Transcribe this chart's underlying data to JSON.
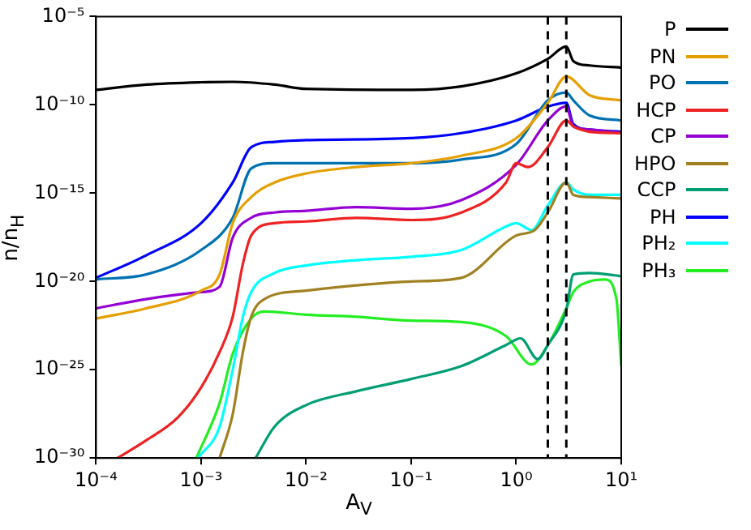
{
  "chart_data": {
    "type": "line",
    "xlabel": "A$_{V}$",
    "ylabel": "n/n$_{H}$",
    "log": "xy",
    "xlim": [
      0.0001,
      10
    ],
    "ylim": [
      1e-30,
      1e-05
    ],
    "xticks": [
      {
        "value": 0.0001,
        "label": "10⁻⁴"
      },
      {
        "value": 0.001,
        "label": "10⁻³"
      },
      {
        "value": 0.01,
        "label": "10⁻²"
      },
      {
        "value": 0.1,
        "label": "10⁻¹"
      },
      {
        "value": 1,
        "label": "10⁰"
      },
      {
        "value": 10,
        "label": "10¹"
      }
    ],
    "yticks": [
      {
        "value": 1e-30,
        "label": "10⁻³⁰"
      },
      {
        "value": 1e-25,
        "label": "10⁻²⁵"
      },
      {
        "value": 1e-20,
        "label": "10⁻²⁰"
      },
      {
        "value": 1e-15,
        "label": "10⁻¹⁵"
      },
      {
        "value": 1e-10,
        "label": "10⁻¹⁰"
      },
      {
        "value": 1e-05,
        "label": "10⁻⁵"
      }
    ],
    "grid": false,
    "legend": "right",
    "marker": "none",
    "line_style": "solid",
    "ref_lines": [
      {
        "axis": "x",
        "value": 2,
        "color": "#000000",
        "line_style": "dashed"
      },
      {
        "axis": "x",
        "value": 3,
        "color": "#000000",
        "line_style": "dashed"
      }
    ],
    "series": [
      {
        "name": "P",
        "color": "#000000",
        "x": [
          0.0001,
          0.0003,
          0.001,
          0.002,
          0.005,
          0.01,
          0.1,
          0.3,
          1,
          2,
          3,
          3.5,
          5,
          10
        ],
        "values": [
          7e-10,
          1.4e-09,
          1.9e-09,
          2e-09,
          1.4e-09,
          8e-10,
          7e-10,
          1.1e-09,
          6e-09,
          4e-08,
          2e-07,
          3e-08,
          1.7e-08,
          1.3e-08
        ]
      },
      {
        "name": "PN",
        "color": "#e69f00",
        "x": [
          0.0001,
          0.0003,
          0.001,
          0.0015,
          0.002,
          0.003,
          0.005,
          0.01,
          0.03,
          0.1,
          0.3,
          1,
          2,
          3,
          5,
          10
        ],
        "values": [
          8e-23,
          3e-22,
          3e-21,
          2.5e-20,
          2e-17,
          6e-16,
          4e-15,
          1.3e-14,
          3e-14,
          5e-14,
          1.3e-13,
          1.3e-12,
          1.3e-10,
          4e-09,
          3.5e-10,
          1.8e-10
        ]
      },
      {
        "name": "PO",
        "color": "#0072b2",
        "x": [
          0.0001,
          0.0003,
          0.001,
          0.002,
          0.003,
          0.005,
          0.01,
          0.1,
          0.3,
          1,
          2,
          3,
          3.5,
          5,
          10
        ],
        "values": [
          1.3e-20,
          2.5e-20,
          6e-19,
          4e-17,
          2.5e-14,
          5e-14,
          5e-14,
          5e-14,
          8e-14,
          6e-13,
          1.8e-10,
          5e-10,
          1.8e-10,
          2.5e-11,
          1.3e-11
        ]
      },
      {
        "name": "HCP",
        "color": "#ee2222",
        "x": [
          0.00016,
          0.0003,
          0.0006,
          0.001,
          0.0015,
          0.002,
          0.0025,
          0.003,
          0.005,
          0.01,
          0.03,
          0.1,
          0.3,
          0.8,
          1,
          1.3,
          2,
          3,
          3.5,
          5,
          10
        ],
        "values": [
          1e-30,
          1e-29,
          2e-28,
          1e-26,
          1e-24,
          1e-22,
          1e-19,
          4e-18,
          2e-17,
          2.5e-17,
          4e-17,
          3e-17,
          8e-17,
          4e-15,
          5e-14,
          3e-14,
          4e-13,
          1.3e-11,
          6e-12,
          3e-12,
          2.5e-12
        ]
      },
      {
        "name": "CP",
        "color": "#9400d3",
        "x": [
          0.0001,
          0.0003,
          0.001,
          0.0015,
          0.002,
          0.003,
          0.005,
          0.01,
          0.03,
          0.1,
          0.3,
          1,
          2,
          3,
          3.5,
          5,
          10
        ],
        "values": [
          3e-22,
          1e-21,
          2.5e-21,
          5e-21,
          3e-18,
          4e-17,
          8e-17,
          1e-16,
          1.6e-16,
          1.3e-16,
          4e-16,
          4e-14,
          1.3e-11,
          8e-11,
          6e-12,
          4e-12,
          2.5e-12
        ]
      },
      {
        "name": "HPO",
        "color": "#a08020",
        "x": [
          0.0015,
          0.002,
          0.0025,
          0.003,
          0.004,
          0.01,
          0.03,
          0.1,
          0.3,
          1,
          1.5,
          2,
          3,
          3.5,
          5,
          10
        ],
        "values": [
          1e-30,
          3e-28,
          1e-24,
          1e-22,
          1e-21,
          3e-21,
          6e-21,
          1e-20,
          1.6e-20,
          4e-18,
          8e-18,
          8e-17,
          4e-15,
          8e-16,
          6e-16,
          5e-16
        ]
      },
      {
        "name": "CCP",
        "color": "#009e73",
        "x": [
          0.0033,
          0.005,
          0.01,
          0.03,
          0.1,
          0.3,
          0.8,
          1.1,
          1.6,
          2,
          3,
          3.5,
          5,
          10
        ],
        "values": [
          1e-30,
          6e-29,
          1e-27,
          6e-27,
          3e-26,
          1.6e-25,
          2.5e-24,
          6e-24,
          4e-25,
          2.5e-24,
          2.5e-22,
          2.5e-20,
          3e-20,
          2e-20
        ]
      },
      {
        "name": "PH",
        "color": "#0000ff",
        "x": [
          0.0001,
          0.0003,
          0.001,
          0.002,
          0.003,
          0.005,
          0.01,
          0.1,
          0.3,
          1,
          2,
          3,
          3.5,
          5,
          10
        ],
        "values": [
          1.6e-20,
          3e-19,
          2e-17,
          4e-15,
          4e-13,
          8e-13,
          1e-12,
          1.3e-12,
          2.5e-12,
          1.3e-11,
          8e-11,
          1.3e-10,
          8e-12,
          4e-12,
          3e-12
        ]
      },
      {
        "name": "PH₂",
        "color": "#00ffff",
        "x": [
          0.00093,
          0.0015,
          0.002,
          0.0025,
          0.003,
          0.005,
          0.01,
          0.03,
          0.1,
          0.3,
          0.8,
          1,
          1.4,
          2,
          3,
          3.5,
          5,
          10
        ],
        "values": [
          1e-30,
          6e-29,
          1e-25,
          1e-22,
          2.5e-21,
          3e-20,
          8e-20,
          1.6e-19,
          2.5e-19,
          6e-19,
          1.3e-17,
          2e-17,
          8e-18,
          2e-16,
          4e-15,
          1.6e-15,
          8e-16,
          8e-16
        ]
      },
      {
        "name": "PH₃",
        "color": "#22ee22",
        "x": [
          0.0009,
          0.0015,
          0.002,
          0.003,
          0.004,
          0.01,
          0.03,
          0.1,
          0.3,
          0.8,
          1.4,
          2,
          3,
          3.5,
          5,
          7,
          9,
          10
        ],
        "values": [
          1e-30,
          1.3e-27,
          8e-25,
          8e-23,
          2e-22,
          1.3e-22,
          1e-22,
          6e-23,
          5e-23,
          8e-24,
          2e-25,
          2.5e-24,
          3e-22,
          2.5e-21,
          1e-20,
          1.3e-20,
          1e-21,
          1.6e-25
        ]
      }
    ]
  }
}
